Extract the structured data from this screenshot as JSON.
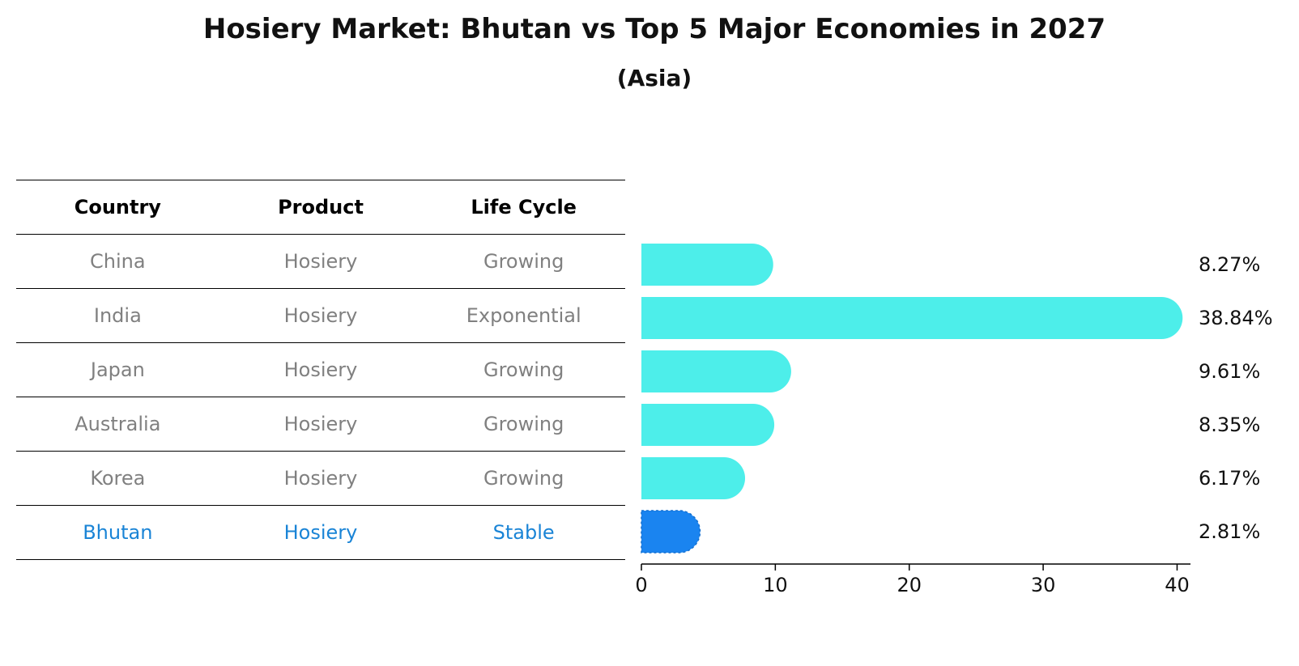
{
  "title": "Hosiery Market: Bhutan vs Top 5 Major Economies in 2027",
  "subtitle": "(Asia)",
  "table": {
    "headers": [
      "Country",
      "Product",
      "Life Cycle"
    ],
    "rows": [
      [
        "China",
        "Hosiery",
        "Growing"
      ],
      [
        "India",
        "Hosiery",
        "Exponential"
      ],
      [
        "Japan",
        "Hosiery",
        "Growing"
      ],
      [
        "Australia",
        "Hosiery",
        "Growing"
      ],
      [
        "Korea",
        "Hosiery",
        "Growing"
      ],
      [
        "Bhutan",
        "Hosiery",
        "Stable"
      ]
    ]
  },
  "colors": {
    "bar": "#4deeea",
    "highlight": "#1a84f0",
    "highlight_text": "#1a84d6"
  },
  "chart_data": {
    "type": "bar",
    "orientation": "horizontal",
    "categories": [
      "China",
      "India",
      "Japan",
      "Australia",
      "Korea",
      "Bhutan"
    ],
    "values": [
      8.27,
      38.84,
      9.61,
      8.35,
      6.17,
      2.81
    ],
    "labels": [
      "8.27%",
      "38.84%",
      "9.61%",
      "8.35%",
      "6.17%",
      "2.81%"
    ],
    "highlight": "Bhutan",
    "xlim": [
      0,
      41
    ],
    "xticks": [
      0,
      10,
      20,
      30,
      40
    ],
    "grid": false
  }
}
